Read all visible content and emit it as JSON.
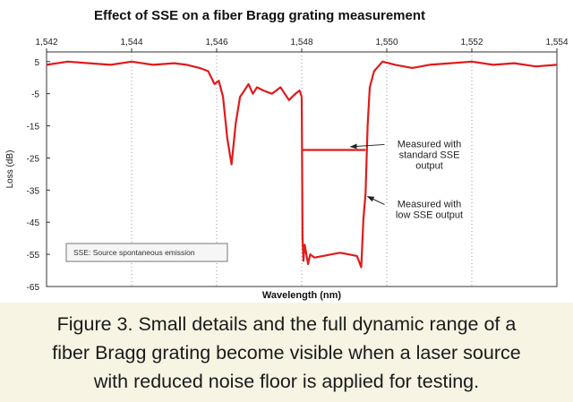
{
  "chart_data": {
    "type": "line",
    "title": "Effect of SSE on a fiber Bragg grating measurement",
    "xlabel": "Wavelength (nm)",
    "ylabel": "Loss (dB)",
    "xlim": [
      1542,
      1554
    ],
    "ylim": [
      -65,
      8
    ],
    "x_ticks": [
      1542,
      1544,
      1546,
      1548,
      1550,
      1552,
      1554
    ],
    "x_tick_labels": [
      "1,542",
      "1,544",
      "1,546",
      "1,548",
      "1,550",
      "1,552",
      "1,554"
    ],
    "y_ticks": [
      5,
      -5,
      -15,
      -25,
      -35,
      -45,
      -55,
      -65
    ],
    "y_tick_labels": [
      "5",
      "-5",
      "-15",
      "-25",
      "-35",
      "-45",
      "-55",
      "-65"
    ],
    "grid": "vertical-dotted",
    "line_color": "#e01b1b",
    "series": [
      {
        "x": [
          1542.0,
          1542.5,
          1543.0,
          1543.5,
          1544.0,
          1544.5,
          1545.0,
          1545.3,
          1545.6,
          1545.8,
          1545.95,
          1546.05,
          1546.15,
          1546.25,
          1546.35,
          1546.45,
          1546.55,
          1546.65,
          1546.75,
          1546.85,
          1546.95,
          1547.1,
          1547.3,
          1547.5,
          1547.7,
          1547.85,
          1547.95,
          1548.0
        ],
        "y": [
          4.0,
          5.0,
          4.5,
          4.0,
          5.0,
          4.0,
          4.5,
          4.0,
          3.0,
          2.0,
          -2.0,
          -1.0,
          -6.0,
          -19.0,
          -27.0,
          -14.0,
          -6.0,
          -4.0,
          -2.0,
          -5.0,
          -3.0,
          -4.0,
          -5.0,
          -3.0,
          -7.0,
          -5.0,
          -4.0,
          -6.0
        ]
      },
      {
        "x": [
          1548.0,
          1548.8,
          1549.5
        ],
        "y": [
          -22.5,
          -22.5,
          -22.5
        ]
      },
      {
        "x": [
          1548.0,
          1548.02,
          1548.04,
          1548.07,
          1548.15,
          1548.2,
          1548.3,
          1548.5,
          1548.7,
          1548.9,
          1549.1,
          1549.3,
          1549.4,
          1549.45,
          1549.5,
          1549.55,
          1549.6,
          1549.7,
          1549.9,
          1550.2,
          1550.6,
          1551.0,
          1551.5,
          1552.0,
          1552.5,
          1553.0,
          1553.5,
          1554.0
        ],
        "y": [
          -6.0,
          -50.0,
          -57.0,
          -52.0,
          -58.0,
          -55.0,
          -56.0,
          -55.5,
          -55.0,
          -54.5,
          -55.0,
          -55.5,
          -59.0,
          -44.0,
          -36.0,
          -15.0,
          -3.0,
          2.0,
          5.0,
          4.0,
          3.0,
          4.0,
          4.5,
          5.0,
          4.0,
          4.5,
          3.5,
          4.0
        ]
      }
    ],
    "annotations": [
      {
        "lines": [
          "Measured with",
          "standard SSE",
          "output"
        ],
        "x": 1551.0,
        "y": -25.0,
        "arrow_x": 1549.15,
        "arrow_y": -21.5
      },
      {
        "lines": [
          "Measured with",
          "low SSE output"
        ],
        "x": 1551.0,
        "y": -42.0,
        "arrow_x": 1549.55,
        "arrow_y": -37.0
      }
    ],
    "legend_text": "SSE: Source spontaneous emission",
    "legend_position": "bottom-left"
  },
  "caption": {
    "lines": [
      "Figure 3. Small details and the full dynamic range of a",
      "fiber Bragg grating become visible when a laser source",
      "with reduced noise floor is applied for testing."
    ]
  }
}
